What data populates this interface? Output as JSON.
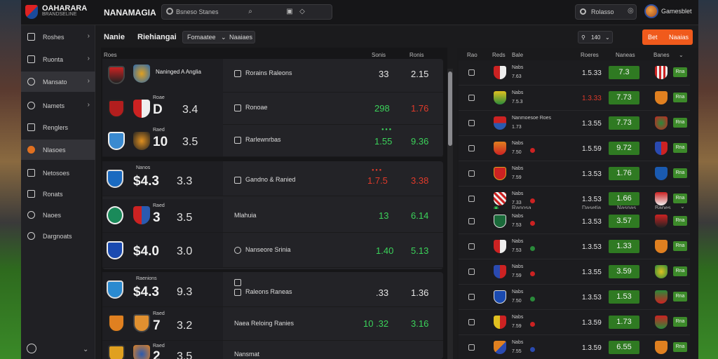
{
  "brand": {
    "name": "OAHARARA",
    "sub": "BRANDSELINE"
  },
  "app_title": "NANAMAGIA",
  "search": {
    "query": "Bsneso Stanes"
  },
  "user": {
    "search_label": "Rolasso",
    "name": "Gamesblet"
  },
  "sidebar": {
    "items": [
      {
        "label": "Roshes",
        "chev": true,
        "active": false
      },
      {
        "label": "Ruonta",
        "chev": true,
        "active": false
      },
      {
        "label": "Mansato",
        "chev": true,
        "active": true
      },
      {
        "label": "Namets",
        "chev": true,
        "active": false
      },
      {
        "label": "Renglers",
        "chev": false,
        "active": false
      },
      {
        "label": "Nlasoes",
        "chev": false,
        "active": true
      },
      {
        "label": "Netosoes",
        "chev": false,
        "active": false
      },
      {
        "label": "Ronats",
        "chev": false,
        "active": false
      },
      {
        "label": "Naoes",
        "chev": false,
        "active": false
      },
      {
        "label": "Dargnoats",
        "chev": false,
        "active": false
      }
    ]
  },
  "center_header": {
    "t1": "Nanie",
    "t2": "Riehiangai",
    "filter": "Fomaatee",
    "filter_right": "Naaiaes"
  },
  "center_columns": {
    "c1": "Roes",
    "c2": "Sonis",
    "c3": "Ronis"
  },
  "center_groups": [
    {
      "rows": [
        {
          "mini": "Naninged A Anglia",
          "big": "",
          "small": "",
          "match": "Rorains Raleons",
          "odd1": "33",
          "odd2": "2.15",
          "c1": "w",
          "c2": "w"
        },
        {
          "mini": "Roae",
          "big": "D",
          "small": "3.4",
          "match": "Ronoae",
          "odd1": "298",
          "odd2": "1.76",
          "c1": "g",
          "c2": "r"
        },
        {
          "mini": "Raed",
          "big": "10",
          "small": "3.5",
          "match": "Rarlewnrbas",
          "odd1": "1.55",
          "odd2": "9.36",
          "c1": "g",
          "c2": "g"
        }
      ]
    },
    {
      "rows": [
        {
          "mini": "Nanos",
          "big": "$4.3",
          "small": "3.3",
          "match": "Gandno & Ranied",
          "odd1": "1.7.5",
          "odd2": "3.38",
          "c1": "r",
          "c2": "r"
        },
        {
          "mini": "Raed",
          "big": "3",
          "small": "3.5",
          "match": "Mlahuia",
          "odd1": "13",
          "odd2": "6.14",
          "c1": "g",
          "c2": "g"
        },
        {
          "mini": "",
          "big": "$4.0",
          "small": "3.0",
          "match": "Nanseore Srinia",
          "odd1": "1.40",
          "odd2": "5.13",
          "c1": "g",
          "c2": "g"
        }
      ]
    },
    {
      "rows": [
        {
          "mini": "Raenions",
          "big": "$4.3",
          "small": "9.3",
          "match": "Raleons Raneas",
          "odd1": ".33",
          "odd2": "1.36",
          "c1": "w",
          "c2": "w"
        },
        {
          "mini": "Raed",
          "big": "7",
          "small": "3.2",
          "match": "Naea Reloing Ranies",
          "odd1": "10 .32",
          "odd2": "3.16",
          "c1": "g",
          "c2": "g"
        },
        {
          "mini": "Raed",
          "big": "2",
          "small": "3.5",
          "match": "Nansmat",
          "odd1": "",
          "odd2": "",
          "c1": "w",
          "c2": "w"
        }
      ]
    }
  ],
  "right_header": {
    "count": "140",
    "bet_label": "Bet",
    "bet_action": "Naaias"
  },
  "right_columns": {
    "c1": "Rao",
    "c2": "Reds",
    "c3": "Bale",
    "c4": "Roeres",
    "c5": "Naneas",
    "c6": "Banes"
  },
  "right_rows_a": [
    {
      "tm": "Nabs",
      "tm2": "7.63",
      "val": "1.5.33",
      "red": false,
      "g": "7.3",
      "s": "Rna"
    },
    {
      "tm": "Nabs",
      "tm2": "7.5.3",
      "val": "1.3.33",
      "red": true,
      "g": "7.73",
      "s": "Rna"
    },
    {
      "tm": "Nanmoesoe Roes",
      "tm2": "1.73",
      "val": "1.3.55",
      "red": false,
      "g": "7.73",
      "s": "Rna"
    },
    {
      "tm": "Nabs",
      "tm2": "7.50",
      "val": "1.5.59",
      "red": false,
      "g": "9.72",
      "s": "Rna"
    },
    {
      "tm": "Nabs",
      "tm2": "7.59",
      "val": "1.3.53",
      "red": false,
      "g": "1.76",
      "s": "Rna"
    },
    {
      "tm": "Nabs",
      "tm2": "7.33",
      "val": "1.3.53",
      "red": false,
      "g": "1.66",
      "s": "Rna"
    }
  ],
  "right_sub": {
    "a": "Ranosa",
    "b": "Dasetia",
    "c": "Nasnas",
    "d": "Banes"
  },
  "right_rows_b": [
    {
      "tm": "Nabs",
      "tm2": "7.53",
      "val": "1.3.53",
      "g": "3.57",
      "s": "Rna"
    },
    {
      "tm": "Nabs",
      "tm2": "7.53",
      "val": "1.3.53",
      "g": "1.33",
      "s": "Rna"
    },
    {
      "tm": "Nabs",
      "tm2": "7.59",
      "val": "1.3.55",
      "g": "3.59",
      "s": "Rna"
    },
    {
      "tm": "Nabs",
      "tm2": "7.50",
      "val": "1.3.53",
      "g": "1.53",
      "s": "Rna"
    },
    {
      "tm": "Nabs",
      "tm2": "7.59",
      "val": "1.3.59",
      "g": "1.73",
      "s": "Rna"
    },
    {
      "tm": "Nabs",
      "tm2": "7.55",
      "val": "1.3.59",
      "g": "6.55",
      "s": "Rna"
    }
  ],
  "colors": {
    "accent": "#f05a1c",
    "odd_green": "#3bd25a",
    "odd_red": "#e03a2a",
    "odd_box": "#2f7a22"
  }
}
